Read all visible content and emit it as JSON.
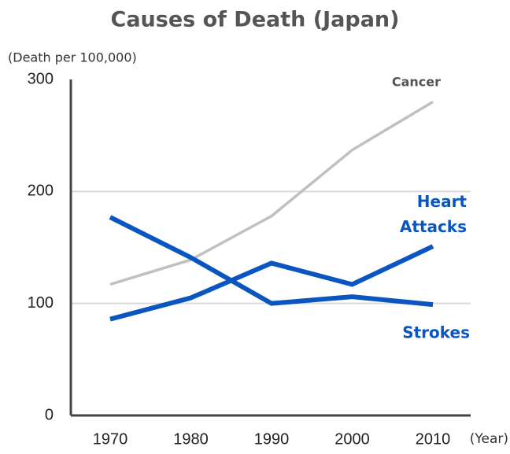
{
  "chart_data": {
    "type": "line",
    "title": "Causes of Death (Japan)",
    "y_label": "(Death per 100,000)",
    "x_label": "(Year)",
    "categories": [
      "1970",
      "1980",
      "1990",
      "2000",
      "2010"
    ],
    "series": [
      {
        "name": "Cancer",
        "color": "#c0c0c0",
        "values": [
          117,
          139,
          178,
          237,
          280
        ]
      },
      {
        "name": "Heart Attacks",
        "color": "#0a55c0",
        "values": [
          86,
          105,
          136,
          117,
          151
        ]
      },
      {
        "name": "Strokes",
        "color": "#0a55c0",
        "values": [
          177,
          141,
          100,
          106,
          99
        ]
      }
    ],
    "ylim": [
      0,
      300
    ],
    "yticks": [
      0,
      100,
      200,
      300
    ],
    "grid": true
  }
}
